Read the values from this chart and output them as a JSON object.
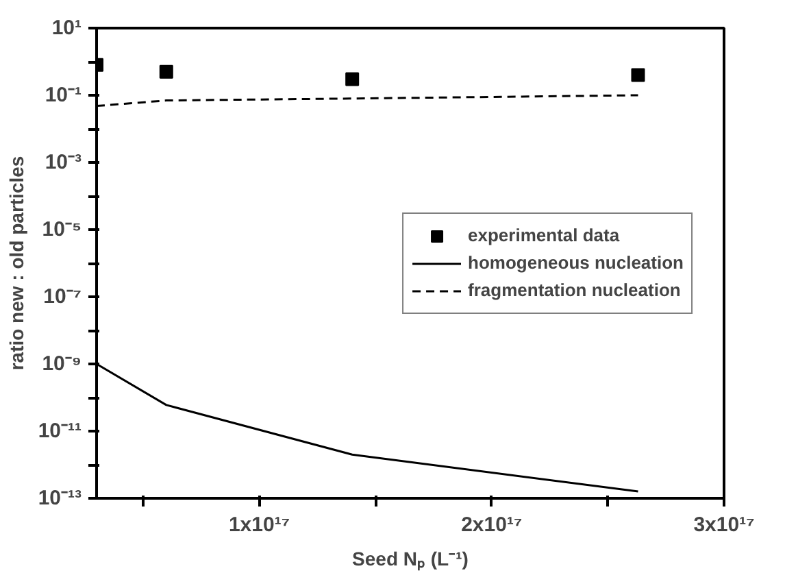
{
  "chart_data": {
    "type": "line",
    "xlabel": "Seed Nₚ (L⁻¹)",
    "ylabel": "ratio new : old particles",
    "log": "y",
    "grid": false,
    "legend": "right",
    "xlim": [
      3e+16,
      3e+17
    ],
    "ylim": [
      1e-13,
      10
    ],
    "xticks": [
      {
        "value": 5e+16,
        "label": null
      },
      {
        "value": 1e+17,
        "label": "1x10¹⁷"
      },
      {
        "value": 1.5e+17,
        "label": null
      },
      {
        "value": 2e+17,
        "label": "2x10¹⁷"
      },
      {
        "value": 2.5e+17,
        "label": null
      },
      {
        "value": 3e+17,
        "label": "3x10¹⁷"
      }
    ],
    "yticks": [
      {
        "value": 1e-13,
        "label": "10⁻¹³"
      },
      {
        "value": 1e-12,
        "label": null
      },
      {
        "value": 1e-11,
        "label": "10⁻¹¹"
      },
      {
        "value": 1e-10,
        "label": null
      },
      {
        "value": 1e-09,
        "label": "10⁻⁹"
      },
      {
        "value": 1e-08,
        "label": null
      },
      {
        "value": 1e-07,
        "label": "10⁻⁷"
      },
      {
        "value": 1e-06,
        "label": null
      },
      {
        "value": 1e-05,
        "label": "10⁻⁵"
      },
      {
        "value": 0.0001,
        "label": null
      },
      {
        "value": 0.001,
        "label": "10⁻³"
      },
      {
        "value": 0.01,
        "label": null
      },
      {
        "value": 0.1,
        "label": "10⁻¹"
      },
      {
        "value": 1,
        "label": null
      },
      {
        "value": 10,
        "label": "10¹"
      }
    ],
    "series": [
      {
        "name": "experimental data",
        "type": "scatter",
        "marker": "square",
        "color": "#000000",
        "x": [
          3e+16,
          6e+16,
          1.4e+17,
          2.63e+17
        ],
        "values": [
          0.8,
          0.5,
          0.3,
          0.4
        ]
      },
      {
        "name": "homogeneous nucleation",
        "line_style": "solid",
        "color": "#000000",
        "x": [
          3e+16,
          6e+16,
          1.4e+17,
          2.63e+17
        ],
        "values": [
          1e-09,
          6e-11,
          2e-12,
          1.6e-13
        ]
      },
      {
        "name": "fragmentation nucleation",
        "line_style": "dashed",
        "color": "#000000",
        "x": [
          3e+16,
          6e+16,
          1.4e+17,
          2.63e+17
        ],
        "values": [
          0.048,
          0.07,
          0.08,
          0.1
        ]
      }
    ]
  }
}
